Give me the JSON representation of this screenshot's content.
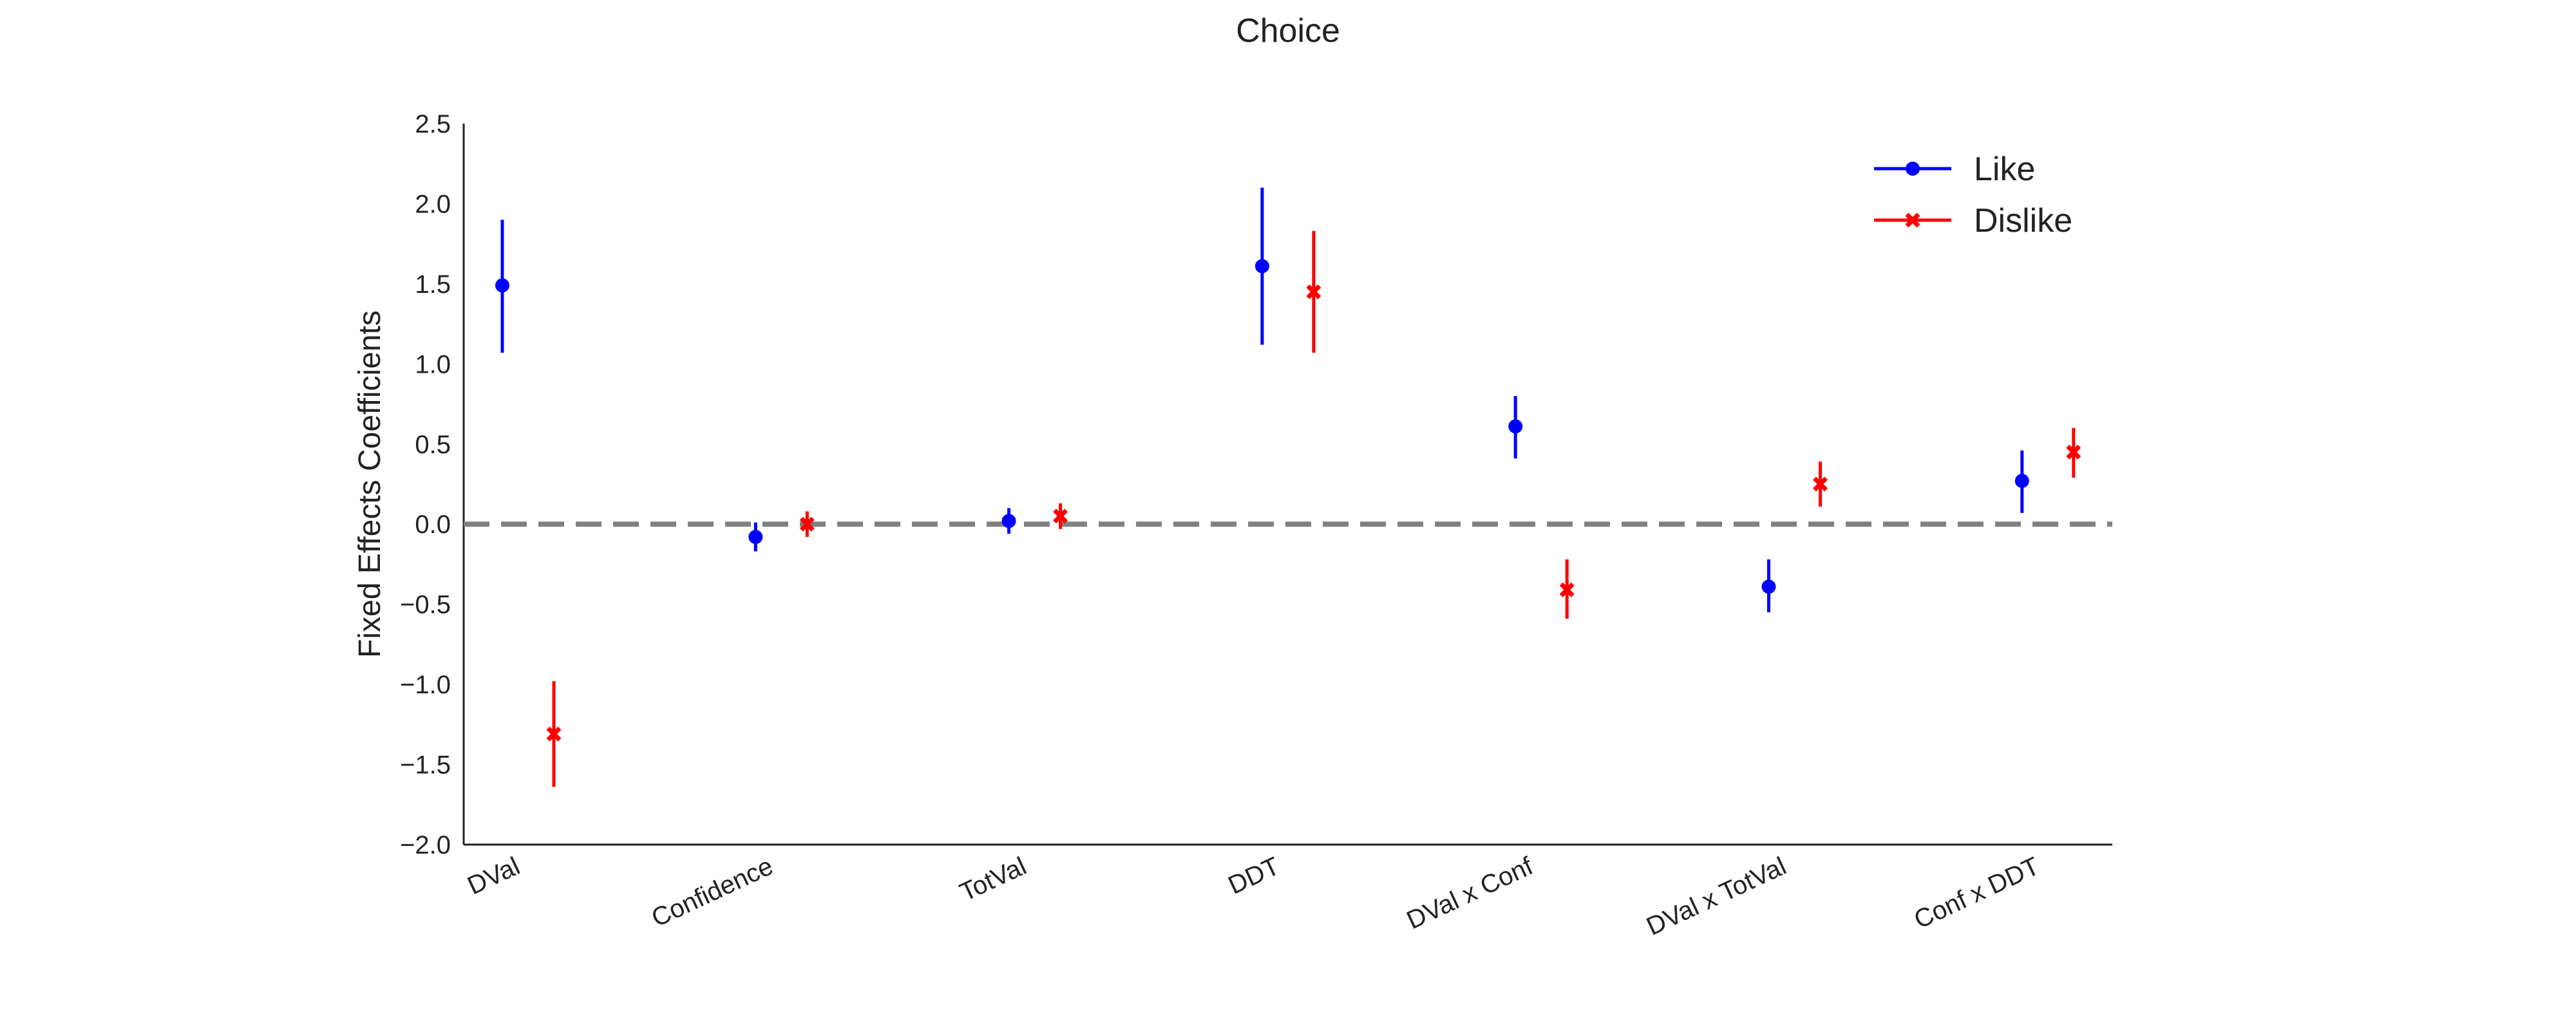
{
  "chart_data": {
    "type": "scatter",
    "title": "Choice",
    "xlabel": "",
    "ylabel": "Fixed Effects Coefficients",
    "ylim": [
      -2.0,
      2.5
    ],
    "yticks": [
      "−2.0",
      "−1.5",
      "−1.0",
      "−0.5",
      "0.0",
      "0.5",
      "1.0",
      "1.5",
      "2.0",
      "2.5"
    ],
    "ytick_values": [
      -2.0,
      -1.5,
      -1.0,
      -0.5,
      0.0,
      0.5,
      1.0,
      1.5,
      2.0,
      2.5
    ],
    "categories": [
      "DVal",
      "Confidence",
      "TotVal",
      "DDT",
      "DVal x Conf",
      "DVal x TotVal",
      "Conf x DDT"
    ],
    "reference_line": 0.0,
    "grid": false,
    "legend_position": "top-right",
    "series": [
      {
        "name": "Like",
        "color": "#0000ff",
        "marker": "circle",
        "values": [
          1.49,
          -0.08,
          0.02,
          1.61,
          0.61,
          -0.39,
          0.27
        ],
        "ci_low": [
          1.07,
          -0.17,
          -0.06,
          1.12,
          0.41,
          -0.55,
          0.07
        ],
        "ci_high": [
          1.9,
          0.01,
          0.1,
          2.1,
          0.8,
          -0.22,
          0.46
        ]
      },
      {
        "name": "Dislike",
        "color": "#ff0000",
        "marker": "x",
        "values": [
          -1.31,
          0.0,
          0.05,
          1.45,
          -0.41,
          0.25,
          0.45
        ],
        "ci_low": [
          -1.64,
          -0.08,
          -0.03,
          1.07,
          -0.59,
          0.11,
          0.29
        ],
        "ci_high": [
          -0.98,
          0.08,
          0.13,
          1.83,
          -0.22,
          0.39,
          0.6
        ]
      }
    ]
  }
}
